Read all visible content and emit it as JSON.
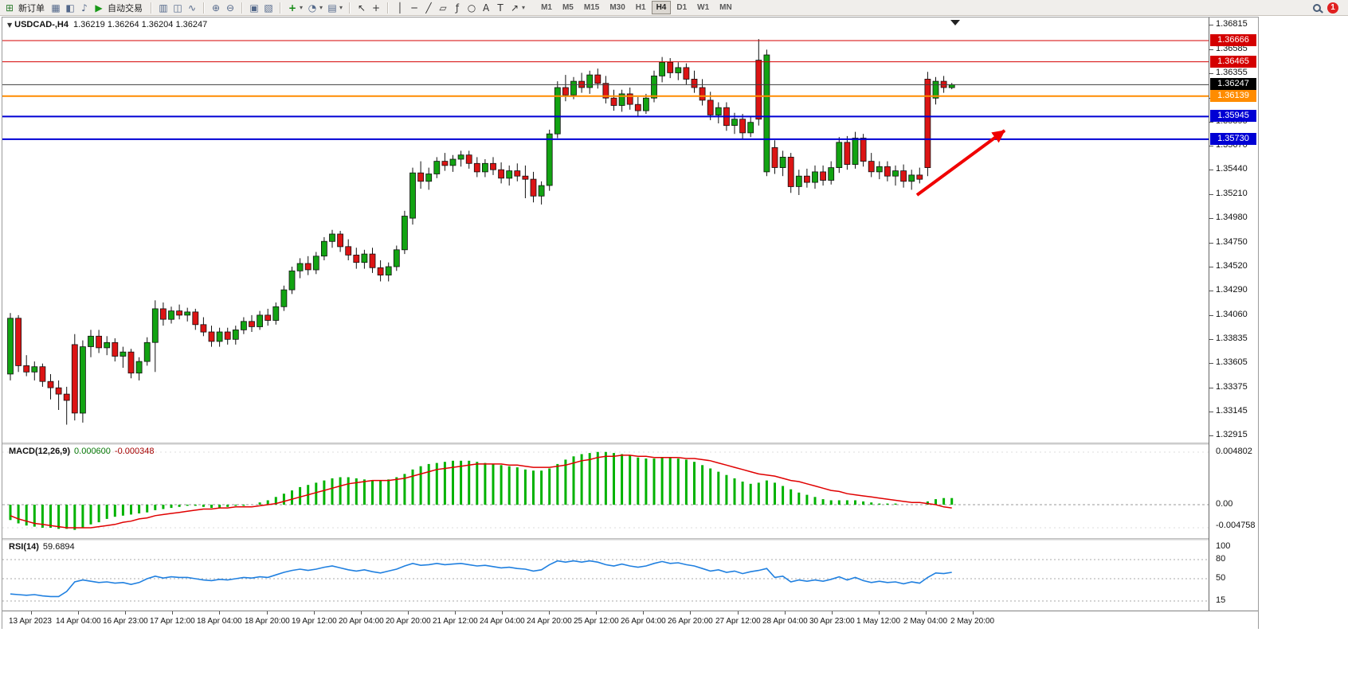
{
  "toolbar": {
    "new_order": "新订单",
    "auto_trading": "自动交易",
    "timeframes": [
      "M1",
      "M5",
      "M15",
      "M30",
      "H1",
      "H4",
      "D1",
      "W1",
      "MN"
    ],
    "active_timeframe": "H4",
    "notification_count": "1",
    "icon_glyphs": {
      "new-order-icon": "⊞",
      "charts-grid-icon": "▦",
      "market-watch-icon": "◧",
      "sound-icon": "♪",
      "autotrading-icon": "▶",
      "bar-chart-icon": "▥",
      "candlestick-icon": "◫",
      "line-chart-icon": "∿",
      "zoom-in-icon": "⊕",
      "zoom-out-icon": "⊖",
      "tile-windows-icon": "▣",
      "cascade-windows-icon": "▧",
      "indicators-icon": "+",
      "periods-icon": "◔",
      "templates-icon": "▤",
      "cursor-icon": "↖",
      "crosshair-icon": "+",
      "vline-icon": "│",
      "hline-icon": "─",
      "trendline-icon": "╱",
      "channel-icon": "▱",
      "fibonacci-icon": "ƒ",
      "ellipse-icon": "○",
      "text-icon": "A",
      "label-icon": "T",
      "arrows-icon": "↗",
      "dropdown-icon": "▾",
      "chart-menu-icon": "▼"
    }
  },
  "chart": {
    "title_symbol": "USDCAD-,H4",
    "title_ohlc": "1.36219 1.36264 1.36204 1.36247",
    "price_scale": [
      "1.36815",
      "1.36585",
      "1.36355",
      "1.36125",
      "1.35895",
      "1.35670",
      "1.35440",
      "1.35210",
      "1.34980",
      "1.34750",
      "1.34520",
      "1.34290",
      "1.34060",
      "1.33835",
      "1.33605",
      "1.33375",
      "1.33145",
      "1.32915"
    ],
    "hlines": [
      {
        "price": 1.36666,
        "label": "1.36666",
        "color": "#d40000",
        "box": "#d40000",
        "width": 1,
        "name": "resistance-line-1"
      },
      {
        "price": 1.36465,
        "label": "1.36465",
        "color": "#d40000",
        "box": "#d40000",
        "width": 1,
        "name": "resistance-line-2"
      },
      {
        "price": 1.36247,
        "label": "1.36247",
        "color": "#3c3c3c",
        "box": "#000000",
        "width": 1,
        "name": "bid-price-line"
      },
      {
        "price": 1.36139,
        "label": "1.36139",
        "color": "#ff8c00",
        "box": "#ff8c00",
        "width": 2,
        "name": "orange-level-line"
      },
      {
        "price": 1.35945,
        "label": "1.35945",
        "color": "#0000d4",
        "box": "#0000d4",
        "width": 2,
        "name": "support-line-1"
      },
      {
        "price": 1.3573,
        "label": "1.35730",
        "color": "#0000d4",
        "box": "#0000d4",
        "width": 2,
        "name": "support-line-2"
      }
    ],
    "time_axis": [
      "13 Apr 2023",
      "14 Apr 04:00",
      "16 Apr 23:00",
      "17 Apr 12:00",
      "18 Apr 04:00",
      "18 Apr 20:00",
      "19 Apr 12:00",
      "20 Apr 04:00",
      "20 Apr 20:00",
      "21 Apr 12:00",
      "24 Apr 04:00",
      "24 Apr 20:00",
      "25 Apr 12:00",
      "26 Apr 04:00",
      "26 Apr 20:00",
      "27 Apr 12:00",
      "28 Apr 04:00",
      "30 Apr 23:00",
      "1 May 12:00",
      "2 May 04:00",
      "2 May 20:00"
    ],
    "annotation_arrow": {
      "color": "#f00000",
      "direction": "up-right"
    }
  },
  "macd": {
    "name": "MACD(12,26,9)",
    "value_main": "0.000600",
    "value_signal": "-0.000348",
    "axis": [
      "0.004802",
      "0.00",
      "-0.004758"
    ]
  },
  "rsi": {
    "name": "RSI(14)",
    "value": "59.6894",
    "axis": [
      "100",
      "80",
      "50",
      "15"
    ]
  },
  "theme": {
    "up": "#12a312",
    "down": "#dc1414",
    "wick": "#111111",
    "macd_histogram": "#00b200",
    "macd_signal": "#e00000",
    "rsi": "#2080e0",
    "arrow": "#f00000"
  },
  "chart_data": {
    "type": "candlestick",
    "symbol": "USDCAD-",
    "period": "H4",
    "price_range": [
      1.3285,
      1.36885
    ],
    "candles": [
      [
        1.335,
        1.3408,
        1.3344,
        1.3403
      ],
      [
        1.3403,
        1.3406,
        1.3352,
        1.3358
      ],
      [
        1.3358,
        1.3368,
        1.3348,
        1.3352
      ],
      [
        1.3352,
        1.3362,
        1.3344,
        1.3357
      ],
      [
        1.3357,
        1.336,
        1.3338,
        1.3343
      ],
      [
        1.3343,
        1.335,
        1.3326,
        1.3337
      ],
      [
        1.3337,
        1.3344,
        1.3316,
        1.3331
      ],
      [
        1.3331,
        1.3338,
        1.3302,
        1.3325
      ],
      [
        1.3378,
        1.3388,
        1.3306,
        1.3313
      ],
      [
        1.3313,
        1.3382,
        1.3304,
        1.3376
      ],
      [
        1.3376,
        1.3392,
        1.3366,
        1.3386
      ],
      [
        1.3386,
        1.3392,
        1.337,
        1.3375
      ],
      [
        1.3375,
        1.3386,
        1.3368,
        1.338
      ],
      [
        1.338,
        1.3384,
        1.3362,
        1.3367
      ],
      [
        1.3367,
        1.3376,
        1.3356,
        1.3371
      ],
      [
        1.3371,
        1.3374,
        1.3346,
        1.3351
      ],
      [
        1.3351,
        1.3366,
        1.3344,
        1.3362
      ],
      [
        1.3362,
        1.3385,
        1.3358,
        1.338
      ],
      [
        1.338,
        1.342,
        1.3352,
        1.3412
      ],
      [
        1.3412,
        1.3418,
        1.3396,
        1.3402
      ],
      [
        1.3402,
        1.3414,
        1.3398,
        1.341
      ],
      [
        1.341,
        1.3416,
        1.3402,
        1.3406
      ],
      [
        1.3406,
        1.3413,
        1.34,
        1.3409
      ],
      [
        1.3409,
        1.3412,
        1.3392,
        1.3397
      ],
      [
        1.3397,
        1.3404,
        1.3386,
        1.339
      ],
      [
        1.339,
        1.3396,
        1.3376,
        1.3381
      ],
      [
        1.3381,
        1.3394,
        1.3376,
        1.339
      ],
      [
        1.339,
        1.3394,
        1.3378,
        1.3383
      ],
      [
        1.3383,
        1.3396,
        1.3378,
        1.3392
      ],
      [
        1.3392,
        1.3404,
        1.3388,
        1.34
      ],
      [
        1.34,
        1.3406,
        1.339,
        1.3395
      ],
      [
        1.3395,
        1.341,
        1.3392,
        1.3406
      ],
      [
        1.3406,
        1.3412,
        1.3396,
        1.3401
      ],
      [
        1.3401,
        1.3418,
        1.3397,
        1.3414
      ],
      [
        1.3414,
        1.3434,
        1.341,
        1.343
      ],
      [
        1.343,
        1.3452,
        1.3426,
        1.3448
      ],
      [
        1.3448,
        1.346,
        1.3441,
        1.3455
      ],
      [
        1.3455,
        1.3462,
        1.3444,
        1.3449
      ],
      [
        1.3449,
        1.3466,
        1.3445,
        1.3462
      ],
      [
        1.3462,
        1.348,
        1.3458,
        1.3476
      ],
      [
        1.3476,
        1.3487,
        1.347,
        1.3483
      ],
      [
        1.3483,
        1.3486,
        1.3466,
        1.3471
      ],
      [
        1.3471,
        1.3478,
        1.3458,
        1.3463
      ],
      [
        1.3463,
        1.347,
        1.345,
        1.3456
      ],
      [
        1.3456,
        1.3468,
        1.345,
        1.3464
      ],
      [
        1.3464,
        1.347,
        1.3446,
        1.3451
      ],
      [
        1.3451,
        1.3458,
        1.3438,
        1.3444
      ],
      [
        1.3444,
        1.3456,
        1.3438,
        1.3452
      ],
      [
        1.3452,
        1.3472,
        1.3448,
        1.3468
      ],
      [
        1.3468,
        1.3505,
        1.3464,
        1.35
      ],
      [
        1.3498,
        1.3546,
        1.3492,
        1.3541
      ],
      [
        1.3541,
        1.3552,
        1.3526,
        1.3533
      ],
      [
        1.3533,
        1.3546,
        1.3525,
        1.354
      ],
      [
        1.354,
        1.3556,
        1.3536,
        1.3552
      ],
      [
        1.3552,
        1.356,
        1.3543,
        1.3548
      ],
      [
        1.3548,
        1.3558,
        1.3542,
        1.3554
      ],
      [
        1.3554,
        1.3562,
        1.3547,
        1.3558
      ],
      [
        1.3558,
        1.3562,
        1.3545,
        1.355
      ],
      [
        1.355,
        1.3556,
        1.3537,
        1.3542
      ],
      [
        1.3542,
        1.3554,
        1.3537,
        1.355
      ],
      [
        1.355,
        1.3556,
        1.3539,
        1.3544
      ],
      [
        1.3544,
        1.3551,
        1.3531,
        1.3536
      ],
      [
        1.3536,
        1.3548,
        1.3529,
        1.3543
      ],
      [
        1.3543,
        1.355,
        1.3533,
        1.3538
      ],
      [
        1.3538,
        1.3548,
        1.3517,
        1.3535
      ],
      [
        1.3535,
        1.3542,
        1.3513,
        1.3519
      ],
      [
        1.3519,
        1.3533,
        1.3511,
        1.3529
      ],
      [
        1.3529,
        1.3582,
        1.3524,
        1.3578
      ],
      [
        1.3578,
        1.3628,
        1.3574,
        1.3622
      ],
      [
        1.3622,
        1.3634,
        1.3609,
        1.3615
      ],
      [
        1.3615,
        1.3632,
        1.3611,
        1.3628
      ],
      [
        1.3628,
        1.3636,
        1.3617,
        1.3622
      ],
      [
        1.3622,
        1.3638,
        1.3616,
        1.3634
      ],
      [
        1.3634,
        1.364,
        1.3621,
        1.3626
      ],
      [
        1.3626,
        1.3633,
        1.3607,
        1.3612
      ],
      [
        1.3612,
        1.362,
        1.36,
        1.3605
      ],
      [
        1.3605,
        1.362,
        1.3599,
        1.3616
      ],
      [
        1.3616,
        1.3622,
        1.3601,
        1.3606
      ],
      [
        1.3606,
        1.3613,
        1.3595,
        1.36
      ],
      [
        1.36,
        1.3616,
        1.3597,
        1.3612
      ],
      [
        1.3612,
        1.3638,
        1.3608,
        1.3633
      ],
      [
        1.3633,
        1.3651,
        1.3627,
        1.3646
      ],
      [
        1.3646,
        1.365,
        1.3631,
        1.3636
      ],
      [
        1.3636,
        1.3646,
        1.3629,
        1.3641
      ],
      [
        1.3641,
        1.3645,
        1.3625,
        1.363
      ],
      [
        1.363,
        1.3638,
        1.3617,
        1.3622
      ],
      [
        1.3622,
        1.363,
        1.3605,
        1.361
      ],
      [
        1.361,
        1.3618,
        1.3591,
        1.3596
      ],
      [
        1.3596,
        1.3608,
        1.3588,
        1.3603
      ],
      [
        1.3603,
        1.3608,
        1.3581,
        1.3586
      ],
      [
        1.3586,
        1.3598,
        1.3578,
        1.3592
      ],
      [
        1.3592,
        1.3597,
        1.3573,
        1.3579
      ],
      [
        1.3579,
        1.3594,
        1.3575,
        1.3589
      ],
      [
        1.3648,
        1.3668,
        1.3586,
        1.3592
      ],
      [
        1.3542,
        1.3658,
        1.3538,
        1.3653
      ],
      [
        1.3565,
        1.3572,
        1.354,
        1.3546
      ],
      [
        1.3546,
        1.3562,
        1.3538,
        1.3556
      ],
      [
        1.3556,
        1.356,
        1.3522,
        1.3528
      ],
      [
        1.3528,
        1.3544,
        1.352,
        1.3538
      ],
      [
        1.3538,
        1.3545,
        1.3527,
        1.3532
      ],
      [
        1.3532,
        1.3548,
        1.3526,
        1.3542
      ],
      [
        1.3542,
        1.3548,
        1.3529,
        1.3534
      ],
      [
        1.3534,
        1.3552,
        1.353,
        1.3546
      ],
      [
        1.3546,
        1.3575,
        1.3541,
        1.357
      ],
      [
        1.357,
        1.3576,
        1.3544,
        1.3549
      ],
      [
        1.3549,
        1.358,
        1.3545,
        1.3574
      ],
      [
        1.3574,
        1.3578,
        1.3547,
        1.3552
      ],
      [
        1.3552,
        1.356,
        1.3537,
        1.3542
      ],
      [
        1.3542,
        1.3552,
        1.3535,
        1.3547
      ],
      [
        1.3547,
        1.3552,
        1.3533,
        1.3538
      ],
      [
        1.3538,
        1.3548,
        1.3529,
        1.3543
      ],
      [
        1.3543,
        1.3549,
        1.3527,
        1.3533
      ],
      [
        1.3533,
        1.3544,
        1.3525,
        1.3539
      ],
      [
        1.3539,
        1.3546,
        1.3531,
        1.3535
      ],
      [
        1.363,
        1.3637,
        1.3538,
        1.3546
      ],
      [
        1.3612,
        1.3632,
        1.3606,
        1.3628
      ],
      [
        1.3628,
        1.3633,
        1.3617,
        1.3622
      ],
      [
        1.36219,
        1.36264,
        1.36204,
        1.36247
      ]
    ],
    "macd_histogram": [
      -0.0014,
      -0.0017,
      -0.0019,
      -0.002,
      -0.0021,
      -0.0021,
      -0.0022,
      -0.0022,
      -0.0023,
      -0.0021,
      -0.0018,
      -0.0016,
      -0.0013,
      -0.0011,
      -0.001,
      -0.0009,
      -0.0008,
      -0.0007,
      -0.0005,
      -0.0004,
      -0.0003,
      -0.0002,
      -0.0001,
      -0.0001,
      -0.0002,
      -0.0003,
      -0.0003,
      -0.0002,
      -0.0001,
      -0.0001,
      0.0,
      0.0002,
      0.0004,
      0.0007,
      0.001,
      0.0013,
      0.0016,
      0.0018,
      0.002,
      0.0022,
      0.0024,
      0.0025,
      0.0025,
      0.0024,
      0.0023,
      0.0022,
      0.0022,
      0.0023,
      0.0025,
      0.0028,
      0.0032,
      0.0035,
      0.0037,
      0.0038,
      0.0039,
      0.004,
      0.004,
      0.004,
      0.0039,
      0.0038,
      0.0037,
      0.0036,
      0.0035,
      0.0034,
      0.0032,
      0.0031,
      0.0031,
      0.0033,
      0.0037,
      0.0041,
      0.0044,
      0.0046,
      0.0047,
      0.0048,
      0.0048,
      0.0047,
      0.0046,
      0.0045,
      0.0043,
      0.0042,
      0.0042,
      0.0043,
      0.0043,
      0.0042,
      0.0041,
      0.0039,
      0.0036,
      0.0033,
      0.003,
      0.0027,
      0.0024,
      0.0021,
      0.0019,
      0.002,
      0.0022,
      0.002,
      0.0017,
      0.0014,
      0.0011,
      0.0009,
      0.0007,
      0.0005,
      0.0004,
      0.0004,
      0.0004,
      0.0004,
      0.0003,
      0.0002,
      0.0001,
      0.0001,
      0.0001,
      0.0,
      0.0,
      0.0,
      0.0003,
      0.0005,
      0.0006,
      0.0006
    ],
    "macd_signal": [
      -0.001,
      -0.0013,
      -0.0015,
      -0.0017,
      -0.0018,
      -0.0019,
      -0.002,
      -0.0021,
      -0.0021,
      -0.0021,
      -0.0021,
      -0.002,
      -0.0019,
      -0.0018,
      -0.0016,
      -0.0015,
      -0.0013,
      -0.0012,
      -0.001,
      -0.0009,
      -0.0008,
      -0.0007,
      -0.0006,
      -0.0005,
      -0.0004,
      -0.0004,
      -0.0003,
      -0.0003,
      -0.0002,
      -0.0002,
      -0.0002,
      -0.0001,
      0.0,
      0.0001,
      0.0003,
      0.0005,
      0.0007,
      0.0009,
      0.0011,
      0.0013,
      0.0015,
      0.0017,
      0.0019,
      0.002,
      0.0021,
      0.0022,
      0.0022,
      0.0022,
      0.0023,
      0.0024,
      0.0026,
      0.0028,
      0.003,
      0.0032,
      0.0033,
      0.0034,
      0.0035,
      0.0036,
      0.0037,
      0.0037,
      0.0037,
      0.0037,
      0.0036,
      0.0036,
      0.0035,
      0.0034,
      0.0034,
      0.0034,
      0.0035,
      0.0036,
      0.0038,
      0.004,
      0.0041,
      0.0043,
      0.0044,
      0.0044,
      0.0045,
      0.0045,
      0.0044,
      0.0044,
      0.0043,
      0.0043,
      0.0043,
      0.0043,
      0.0042,
      0.0042,
      0.0041,
      0.004,
      0.0038,
      0.0036,
      0.0034,
      0.0032,
      0.003,
      0.0028,
      0.0027,
      0.0026,
      0.0024,
      0.0022,
      0.0021,
      0.0019,
      0.0017,
      0.0015,
      0.0013,
      0.0012,
      0.001,
      0.0009,
      0.0008,
      0.0007,
      0.0006,
      0.0005,
      0.0004,
      0.0003,
      0.0002,
      0.0002,
      0.0001,
      0.0,
      -0.0002,
      -0.0003
    ],
    "rsi": [
      26,
      25,
      24,
      25,
      23,
      22,
      22,
      30,
      45,
      48,
      46,
      44,
      45,
      43,
      44,
      41,
      44,
      50,
      54,
      51,
      53,
      52,
      52,
      50,
      48,
      47,
      49,
      48,
      50,
      52,
      51,
      53,
      52,
      56,
      60,
      63,
      65,
      63,
      65,
      68,
      70,
      67,
      64,
      62,
      64,
      61,
      59,
      62,
      65,
      70,
      74,
      71,
      72,
      74,
      72,
      73,
      74,
      72,
      70,
      71,
      69,
      67,
      68,
      66,
      65,
      62,
      64,
      72,
      78,
      76,
      78,
      76,
      78,
      76,
      72,
      70,
      73,
      70,
      68,
      70,
      74,
      77,
      74,
      75,
      72,
      70,
      66,
      62,
      64,
      60,
      62,
      58,
      61,
      63,
      66,
      52,
      54,
      45,
      48,
      46,
      48,
      46,
      49,
      53,
      48,
      52,
      47,
      44,
      46,
      44,
      45,
      42,
      45,
      43,
      52,
      59,
      58,
      60
    ]
  }
}
